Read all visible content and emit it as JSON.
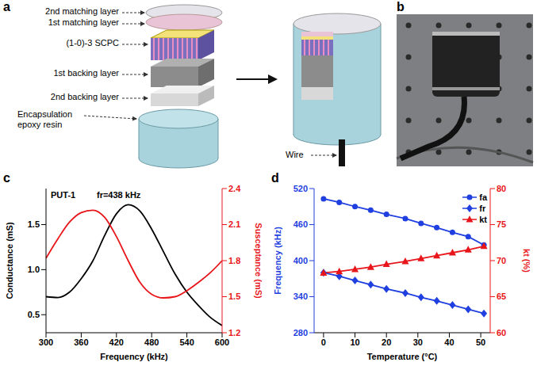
{
  "panel_a": {
    "letter": "a",
    "labels": [
      "2nd matching layer",
      "1st matching layer",
      "(1-0)-3 SCPC",
      "1st backing layer",
      "2nd backing layer",
      "Encapsulation epoxy resin"
    ],
    "wire_label": "Wire"
  },
  "panel_b": {
    "letter": "b"
  },
  "chart_data": [
    {
      "panel": "c",
      "type": "line",
      "x": [
        300,
        320,
        340,
        360,
        380,
        400,
        420,
        440,
        460,
        480,
        500,
        520,
        540,
        560,
        580,
        600
      ],
      "xlabel": "Frequency (kHz)",
      "xlim": [
        300,
        600
      ],
      "xticks": [
        300,
        360,
        420,
        480,
        540,
        600
      ],
      "ylabel": "Conductance (mS)",
      "ylim": [
        0.3,
        1.9
      ],
      "yticks": [
        0.5,
        {
          "value": 1,
          "label": "1.0"
        },
        1.5
      ],
      "y2label": "Susceptance (mS)",
      "y2lim": [
        1.2,
        2.4
      ],
      "y2ticks": [
        1.2,
        1.5,
        1.8,
        2.1,
        2.4
      ],
      "annotations": [
        "PUT-1",
        "fr=438 kHz"
      ],
      "series": [
        {
          "color": "#000000",
          "values": [
            0.7,
            0.69,
            0.75,
            0.9,
            1.1,
            1.38,
            1.62,
            1.72,
            1.65,
            1.45,
            1.2,
            0.95,
            0.75,
            0.6,
            0.47,
            0.38
          ]
        },
        {
          "color": "#e8161b",
          "axis": "y2",
          "values": [
            1.82,
            1.98,
            2.12,
            2.2,
            2.22,
            2.16,
            2.0,
            1.8,
            1.62,
            1.52,
            1.49,
            1.5,
            1.55,
            1.62,
            1.7,
            1.8
          ]
        }
      ]
    },
    {
      "panel": "d",
      "type": "line",
      "x": [
        0,
        5,
        10,
        15,
        20,
        26,
        31,
        36,
        41,
        46,
        51
      ],
      "xlabel": "Temperature (°C)",
      "xlim": [
        -3,
        53
      ],
      "xticks": [
        0,
        10,
        20,
        30,
        40,
        50
      ],
      "ylabel": "Frequency (kHz)",
      "ylim": [
        280,
        520
      ],
      "yticks": [
        280,
        340,
        400,
        460,
        520
      ],
      "y2label": "kt (%)",
      "y2lim": [
        60,
        80
      ],
      "y2ticks": [
        60,
        65,
        70,
        75,
        80
      ],
      "legend": "upper right",
      "series": [
        {
          "name": "fa",
          "color": "#1f3fe0",
          "marker": "circle",
          "values": [
            503,
            497,
            490,
            484,
            477,
            470,
            462,
            455,
            447,
            440,
            426
          ]
        },
        {
          "name": "fr",
          "color": "#1f3fe0",
          "marker": "diamond",
          "values": [
            380,
            374,
            367,
            360,
            353,
            346,
            339,
            333,
            326,
            319,
            312
          ]
        },
        {
          "name": "kt",
          "color": "#e8161b",
          "marker": "triangle",
          "axis": "y2",
          "values": [
            68.3,
            68.5,
            68.8,
            69.1,
            69.5,
            69.9,
            70.3,
            70.7,
            71.1,
            71.5,
            72.0
          ]
        }
      ]
    }
  ]
}
